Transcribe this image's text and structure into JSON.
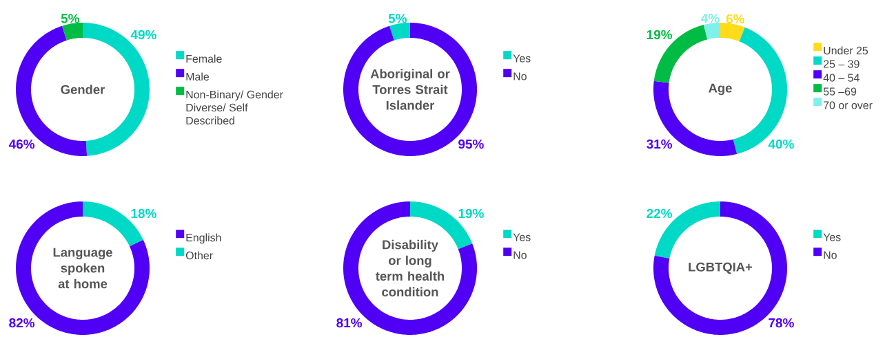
{
  "chart_data": [
    {
      "type": "donut",
      "title": "Gender",
      "categories": [
        "Female",
        "Male",
        "Non-Binary/ Gender Diverse/ Self Described"
      ],
      "values": [
        49,
        46,
        5
      ],
      "colors": [
        "#00d9c6",
        "#5000f5",
        "#00bb44"
      ],
      "value_labels": [
        "49%",
        "46%",
        "5%"
      ],
      "legend": "right"
    },
    {
      "type": "donut",
      "title": "Aboriginal or Torres Strait Islander",
      "categories": [
        "Yes",
        "No"
      ],
      "values": [
        5,
        95
      ],
      "colors": [
        "#00d9c6",
        "#5000f5"
      ],
      "value_labels": [
        "5%",
        "95%"
      ],
      "legend": "right"
    },
    {
      "type": "donut",
      "title": "Age",
      "categories": [
        "Under 25",
        "25 – 39",
        "40 – 54",
        "55 –69",
        "70 or over"
      ],
      "values": [
        6,
        40,
        31,
        19,
        4
      ],
      "colors": [
        "#ffdb1a",
        "#00d9c6",
        "#5000f5",
        "#00bb44",
        "#80f0eb"
      ],
      "value_labels": [
        "6%",
        "40%",
        "31%",
        "19%",
        "4%"
      ],
      "legend": "right"
    },
    {
      "type": "donut",
      "title": "Language spoken at home",
      "categories": [
        "English",
        "Other"
      ],
      "values": [
        82,
        18
      ],
      "colors": [
        "#5000f5",
        "#00d9c6"
      ],
      "value_labels": [
        "82%",
        "18%"
      ],
      "legend": "right"
    },
    {
      "type": "donut",
      "title": "Disability or long term health condition",
      "categories": [
        "Yes",
        "No"
      ],
      "values": [
        19,
        81
      ],
      "colors": [
        "#00d9c6",
        "#5000f5"
      ],
      "value_labels": [
        "19%",
        "81%"
      ],
      "legend": "right"
    },
    {
      "type": "donut",
      "title": "LGBTQIA+",
      "categories": [
        "Yes",
        "No"
      ],
      "values": [
        22,
        78
      ],
      "colors": [
        "#00d9c6",
        "#5000f5"
      ],
      "value_labels": [
        "22%",
        "78%"
      ],
      "legend": "right"
    }
  ]
}
